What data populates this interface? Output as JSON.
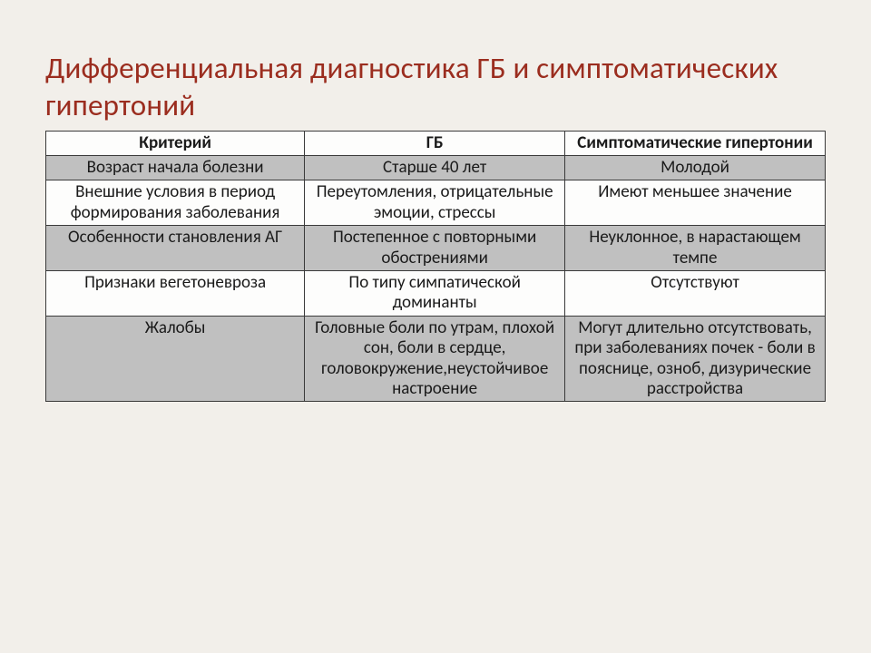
{
  "title": "Дифференциальная диагностика ГБ и симптоматических гипертоний",
  "table": {
    "type": "table",
    "header_bg": "#fdfdfc",
    "row_shaded_bg": "#c0c0c0",
    "row_plain_bg": "#fdfdfc",
    "border_color": "#3a3a3a",
    "font_size": 19,
    "columns": [
      "Критерий",
      "ГБ",
      "Симптоматические гипертонии"
    ],
    "rows": [
      {
        "shade": true,
        "cells": [
          "Возраст начала болезни",
          "Старше 40 лет",
          "Молодой"
        ]
      },
      {
        "shade": false,
        "cells": [
          "Внешние условия в период формирования заболевания",
          "Переутомления, отрицательные эмоции, стрессы",
          "Имеют меньшее значение"
        ]
      },
      {
        "shade": true,
        "cells": [
          "Особенности становления АГ",
          "Постепенное с повторными обострениями",
          "Неуклонное, в нарастающем темпе"
        ]
      },
      {
        "shade": false,
        "cells": [
          "Признаки вегетоневроза",
          "По типу симпатической доминанты",
          "Отсутствуют"
        ]
      },
      {
        "shade": true,
        "cells": [
          "Жалобы",
          "Головные боли по утрам, плохой сон, боли в сердце, головокружение,неустойчивое настроение",
          "Могут длительно отсутствовать, при заболеваниях почек - боли в пояснице, озноб, дизурические расстройства"
        ]
      }
    ]
  },
  "colors": {
    "slide_bg": "#f2efea",
    "title_color": "#9b2d1f"
  }
}
